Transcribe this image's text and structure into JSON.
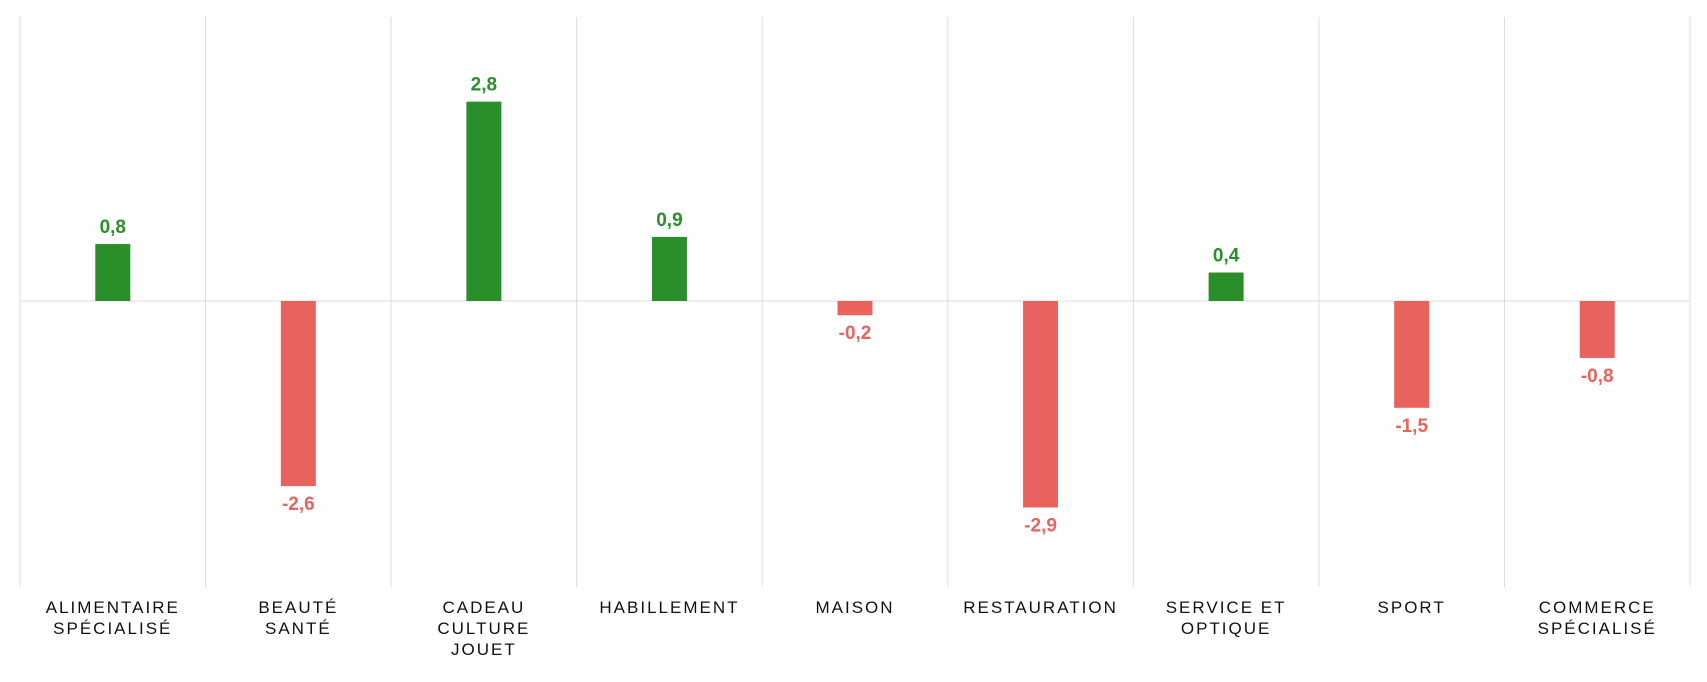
{
  "chart_data": {
    "type": "bar",
    "categories": [
      [
        "ALIMENTAIRE",
        "SPÉCIALISÉ"
      ],
      [
        "BEAUTÉ",
        "SANTÉ"
      ],
      [
        "CADEAU",
        "CULTURE",
        "JOUET"
      ],
      [
        "HABILLEMENT"
      ],
      [
        "MAISON"
      ],
      [
        "RESTAURATION"
      ],
      [
        "SERVICE ET",
        "OPTIQUE"
      ],
      [
        "SPORT"
      ],
      [
        "COMMERCE",
        "SPÉCIALISÉ"
      ]
    ],
    "values": [
      0.8,
      -2.6,
      2.8,
      0.9,
      -0.2,
      -2.9,
      0.4,
      -1.5,
      -0.8
    ],
    "value_labels": [
      "0,8",
      "-2,6",
      "2,8",
      "0,9",
      "-0,2",
      "-2,9",
      "0,4",
      "-1,5",
      "-0,8"
    ],
    "title": "",
    "xlabel": "",
    "ylabel": "",
    "ylim": [
      -4.0,
      4.0
    ],
    "grid": true,
    "legend": "none",
    "colors": {
      "positive": "#2a8f2a",
      "negative": "#e8635e",
      "grid": "#dddddd",
      "text": "#111111"
    }
  }
}
